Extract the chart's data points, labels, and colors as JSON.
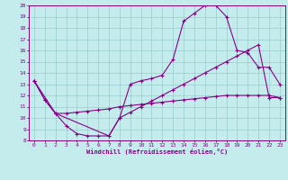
{
  "xlabel": "Windchill (Refroidissement éolien,°C)",
  "xlim": [
    -0.5,
    23.5
  ],
  "ylim": [
    8,
    20
  ],
  "xticks": [
    0,
    1,
    2,
    3,
    4,
    5,
    6,
    7,
    8,
    9,
    10,
    11,
    12,
    13,
    14,
    15,
    16,
    17,
    18,
    19,
    20,
    21,
    22,
    23
  ],
  "yticks": [
    8,
    9,
    10,
    11,
    12,
    13,
    14,
    15,
    16,
    17,
    18,
    19,
    20
  ],
  "bg_color": "#c4ecec",
  "line_color": "#880088",
  "grid_color": "#99cccc",
  "curve1_x": [
    0,
    1,
    2,
    3,
    4,
    5,
    6,
    7,
    8,
    9,
    10,
    11,
    12,
    13,
    14,
    15,
    16,
    17,
    18,
    19,
    20,
    21,
    22,
    23
  ],
  "curve1_y": [
    13.3,
    11.6,
    10.4,
    9.3,
    8.6,
    8.4,
    8.4,
    8.4,
    10.0,
    13.0,
    13.3,
    13.5,
    13.8,
    15.2,
    18.6,
    19.3,
    20.0,
    20.0,
    19.0,
    16.0,
    15.8,
    14.5,
    14.5,
    13.0
  ],
  "curve2_x": [
    0,
    2,
    7,
    8,
    9,
    10,
    11,
    12,
    13,
    14,
    15,
    16,
    17,
    18,
    19,
    20,
    21,
    22,
    23
  ],
  "curve2_y": [
    13.3,
    10.4,
    8.4,
    10.0,
    10.5,
    11.0,
    11.5,
    12.0,
    12.5,
    13.0,
    13.5,
    14.0,
    14.5,
    15.0,
    15.5,
    16.0,
    16.5,
    11.8,
    11.8
  ],
  "curve3_x": [
    0,
    1,
    2,
    3,
    4,
    5,
    6,
    7,
    8,
    9,
    10,
    11,
    12,
    13,
    14,
    15,
    16,
    17,
    18,
    19,
    20,
    21,
    22,
    23
  ],
  "curve3_y": [
    13.3,
    11.6,
    10.4,
    10.4,
    10.5,
    10.6,
    10.7,
    10.8,
    11.0,
    11.1,
    11.2,
    11.3,
    11.4,
    11.5,
    11.6,
    11.7,
    11.8,
    11.9,
    12.0,
    12.0,
    12.0,
    12.0,
    12.0,
    11.8
  ]
}
